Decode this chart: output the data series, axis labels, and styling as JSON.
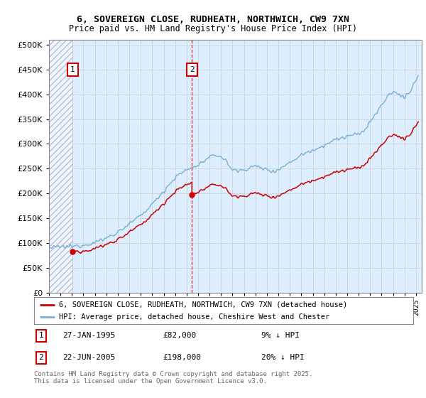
{
  "title_line1": "6, SOVEREIGN CLOSE, RUDHEATH, NORTHWICH, CW9 7XN",
  "title_line2": "Price paid vs. HM Land Registry's House Price Index (HPI)",
  "legend_line1": "6, SOVEREIGN CLOSE, RUDHEATH, NORTHWICH, CW9 7XN (detached house)",
  "legend_line2": "HPI: Average price, detached house, Cheshire West and Chester",
  "footnote": "Contains HM Land Registry data © Crown copyright and database right 2025.\nThis data is licensed under the Open Government Licence v3.0.",
  "annotation1_label": "1",
  "annotation1_date": "27-JAN-1995",
  "annotation1_price": "£82,000",
  "annotation1_hpi": "9% ↓ HPI",
  "annotation2_label": "2",
  "annotation2_date": "22-JUN-2005",
  "annotation2_price": "£198,000",
  "annotation2_hpi": "20% ↓ HPI",
  "purchase1_x": 1995.07,
  "purchase1_y": 82000,
  "purchase2_x": 2005.47,
  "purchase2_y": 198000,
  "red_color": "#cc0000",
  "blue_color": "#7aaed4",
  "grid_color": "#cccccc",
  "bg_color": "#ddeeff",
  "ylim_min": 0,
  "ylim_max": 510000,
  "xlim_min": 1993.0,
  "xlim_max": 2025.5,
  "yticks": [
    0,
    50000,
    100000,
    150000,
    200000,
    250000,
    300000,
    350000,
    400000,
    450000,
    500000
  ],
  "hpi_anchors": [
    [
      1993.0,
      90000
    ],
    [
      1994.0,
      92000
    ],
    [
      1995.0,
      93000
    ],
    [
      1996.0,
      96000
    ],
    [
      1997.0,
      101000
    ],
    [
      1998.0,
      110000
    ],
    [
      1999.0,
      122000
    ],
    [
      2000.0,
      138000
    ],
    [
      2001.0,
      155000
    ],
    [
      2002.0,
      178000
    ],
    [
      2003.0,
      205000
    ],
    [
      2004.0,
      232000
    ],
    [
      2005.0,
      248000
    ],
    [
      2005.5,
      252000
    ],
    [
      2006.0,
      258000
    ],
    [
      2006.5,
      265000
    ],
    [
      2007.0,
      272000
    ],
    [
      2007.5,
      278000
    ],
    [
      2008.0,
      275000
    ],
    [
      2008.5,
      263000
    ],
    [
      2009.0,
      248000
    ],
    [
      2009.5,
      245000
    ],
    [
      2010.0,
      248000
    ],
    [
      2010.5,
      252000
    ],
    [
      2011.0,
      255000
    ],
    [
      2011.5,
      252000
    ],
    [
      2012.0,
      248000
    ],
    [
      2012.5,
      245000
    ],
    [
      2013.0,
      248000
    ],
    [
      2013.5,
      255000
    ],
    [
      2014.0,
      263000
    ],
    [
      2014.5,
      270000
    ],
    [
      2015.0,
      278000
    ],
    [
      2015.5,
      283000
    ],
    [
      2016.0,
      288000
    ],
    [
      2016.5,
      292000
    ],
    [
      2017.0,
      298000
    ],
    [
      2017.5,
      303000
    ],
    [
      2018.0,
      308000
    ],
    [
      2018.5,
      312000
    ],
    [
      2019.0,
      315000
    ],
    [
      2019.5,
      318000
    ],
    [
      2020.0,
      318000
    ],
    [
      2020.5,
      328000
    ],
    [
      2021.0,
      345000
    ],
    [
      2021.5,
      360000
    ],
    [
      2022.0,
      378000
    ],
    [
      2022.5,
      395000
    ],
    [
      2023.0,
      405000
    ],
    [
      2023.5,
      400000
    ],
    [
      2024.0,
      395000
    ],
    [
      2024.5,
      405000
    ],
    [
      2025.0,
      430000
    ],
    [
      2025.2,
      435000
    ]
  ]
}
